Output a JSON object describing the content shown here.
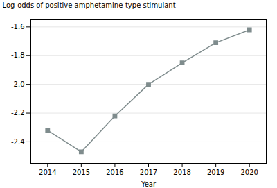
{
  "chart_data": {
    "type": "line",
    "x": [
      2014,
      2015,
      2016,
      2017,
      2018,
      2019,
      2020
    ],
    "values": [
      -2.32,
      -2.47,
      -2.22,
      -2.0,
      -1.85,
      -1.71,
      -1.62
    ],
    "xlabel": "Year",
    "ylabel": "Log-odds of positive amphetamine-type stimulant",
    "xlim": [
      2013.5,
      2020.5
    ],
    "ylim": [
      -2.55,
      -1.55
    ],
    "xticks": [
      2014,
      2015,
      2016,
      2017,
      2018,
      2019,
      2020
    ],
    "yticks": [
      {
        "value": -2.4,
        "label": "-2.4"
      },
      {
        "value": -2.2,
        "label": "-2.2"
      },
      {
        "value": -2.0,
        "label": "-2.0"
      },
      {
        "value": -1.8,
        "label": "-1.8"
      },
      {
        "value": -1.6,
        "label": "-1.6"
      }
    ],
    "color": "#7f8c8d",
    "marker": "square",
    "grid": "y"
  }
}
